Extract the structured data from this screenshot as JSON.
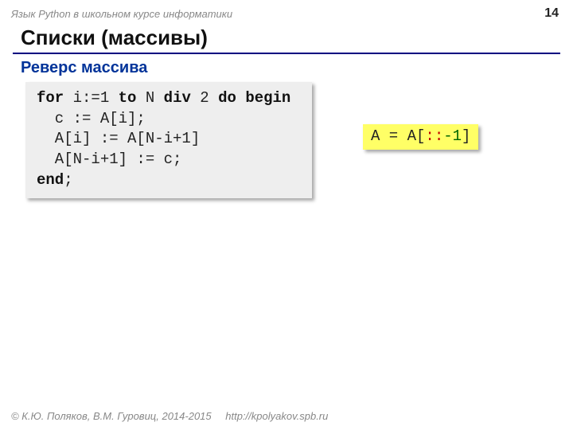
{
  "header": "Язык Python в школьном курсе информатики",
  "pagenum": "14",
  "title": "Списки (массивы)",
  "subtitle": "Реверс массива",
  "code": {
    "l1_for": "for",
    "l1_mid": " i:=1 ",
    "l1_to": "to",
    "l1_n": " N ",
    "l1_div": "div",
    "l1_two": " 2 ",
    "l1_do": "do",
    "l1_sp": " ",
    "l1_begin": "begin",
    "l2": "  c := A[i];",
    "l3": "  A[i] := A[N-i+1]",
    "l4": "  A[N-i+1] := c;",
    "l5": "end",
    "l5_semi": ";"
  },
  "py": {
    "lhs": "A = A[",
    "dots": "::",
    "neg": "-1",
    "rb": "]"
  },
  "footer": {
    "copyright": "© К.Ю. Поляков, В.М. Гуровиц, 2014-2015",
    "url": "http://kpolyakov.spb.ru"
  },
  "colors": {
    "rule": "#000080",
    "subtitle": "#003399",
    "codebox_bg": "#eeeeee",
    "pybox_bg": "#ffff66",
    "py_red": "#c00000",
    "py_green": "#006600",
    "muted": "#888888"
  }
}
